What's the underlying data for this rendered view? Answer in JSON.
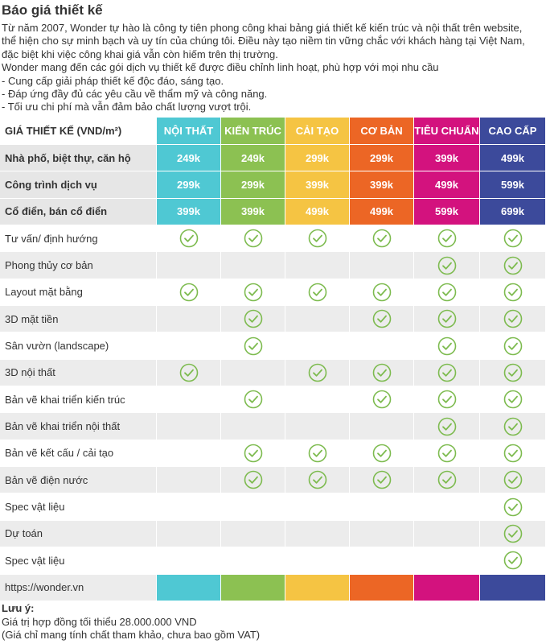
{
  "header": {
    "title": "Báo giá thiết kế",
    "intro": [
      "Từ năm 2007, Wonder tự hào là công ty tiên phong công khai bảng giá thiết kế kiến trúc và nội thất trên website,",
      "thể hiện cho sự minh bạch và uy tín của chúng tôi. Điều này tạo niềm tin vững chắc với khách hàng tại Việt Nam,",
      "đặc biệt khi việc công khai giá vẫn còn hiếm trên thị trường.",
      "Wonder mang đến các gói dịch vụ thiết kế được điều chỉnh linh hoạt, phù hợp với mọi nhu cầu",
      "- Cung cấp giải pháp thiết kế độc đáo, sáng tạo.",
      "- Đáp ứng đầy đủ các yêu cầu về thẩm mỹ và công năng.",
      "- Tối ưu chi phí mà vẫn đảm bảo chất lượng vượt trội."
    ]
  },
  "table": {
    "corner": "GIÁ THIẾT KẾ (VND/m²)",
    "columns": [
      {
        "name": "NỘI THẤT",
        "color": "#4fc8d3"
      },
      {
        "name": "KIẾN TRÚC",
        "color": "#8cc152"
      },
      {
        "name": "CẢI TẠO",
        "color": "#f5c443"
      },
      {
        "name": "CƠ BẢN",
        "color": "#ec6625"
      },
      {
        "name": "TIÊU CHUẨN",
        "color": "#d3127e"
      },
      {
        "name": "CAO CẤP",
        "color": "#3c4a9b"
      }
    ],
    "prices": [
      {
        "label": "Nhà phố, biệt thự, căn hộ",
        "values": [
          "249k",
          "249k",
          "299k",
          "299k",
          "399k",
          "499k"
        ]
      },
      {
        "label": "Công trình dịch vụ",
        "values": [
          "299k",
          "299k",
          "399k",
          "399k",
          "499k",
          "599k"
        ]
      },
      {
        "label": "Cổ điển, bán cổ điển",
        "values": [
          "399k",
          "399k",
          "499k",
          "499k",
          "599k",
          "699k"
        ]
      }
    ],
    "features": [
      {
        "label": "Tư vấn/ định hướng",
        "checks": [
          true,
          true,
          true,
          true,
          true,
          true
        ]
      },
      {
        "label": "Phong thủy cơ bản",
        "checks": [
          false,
          false,
          false,
          false,
          true,
          true
        ]
      },
      {
        "label": "Layout mặt bằng",
        "checks": [
          true,
          true,
          true,
          true,
          true,
          true
        ]
      },
      {
        "label": "3D mặt tiền",
        "checks": [
          false,
          true,
          false,
          true,
          true,
          true
        ]
      },
      {
        "label": "Sân vườn (landscape)",
        "checks": [
          false,
          true,
          false,
          false,
          true,
          true
        ]
      },
      {
        "label": "3D nội thất",
        "checks": [
          true,
          false,
          true,
          true,
          true,
          true
        ]
      },
      {
        "label": "Bản vẽ khai triển kiến trúc",
        "checks": [
          false,
          true,
          false,
          true,
          true,
          true
        ]
      },
      {
        "label": "Bản vẽ khai triển nội thất",
        "checks": [
          false,
          false,
          false,
          false,
          true,
          true
        ]
      },
      {
        "label": "Bản vẽ kết cấu / cải tạo",
        "checks": [
          false,
          true,
          true,
          true,
          true,
          true
        ]
      },
      {
        "label": "Bản vẽ điện nước",
        "checks": [
          false,
          true,
          true,
          true,
          true,
          true
        ]
      },
      {
        "label": "Spec vật liệu",
        "checks": [
          false,
          false,
          false,
          false,
          false,
          true
        ]
      },
      {
        "label": "Dự toán",
        "checks": [
          false,
          false,
          false,
          false,
          false,
          true
        ]
      },
      {
        "label": "Spec vật liệu",
        "checks": [
          false,
          false,
          false,
          false,
          false,
          true
        ]
      }
    ],
    "footer": "https://wonder.vn"
  },
  "notes": {
    "title": "Lưu ý:",
    "lines": [
      "Giá trị hợp đồng tối thiểu 28.000.000 VND",
      "(Giá chỉ mang tính chất tham khảo, chưa bao gồm VAT)"
    ]
  }
}
